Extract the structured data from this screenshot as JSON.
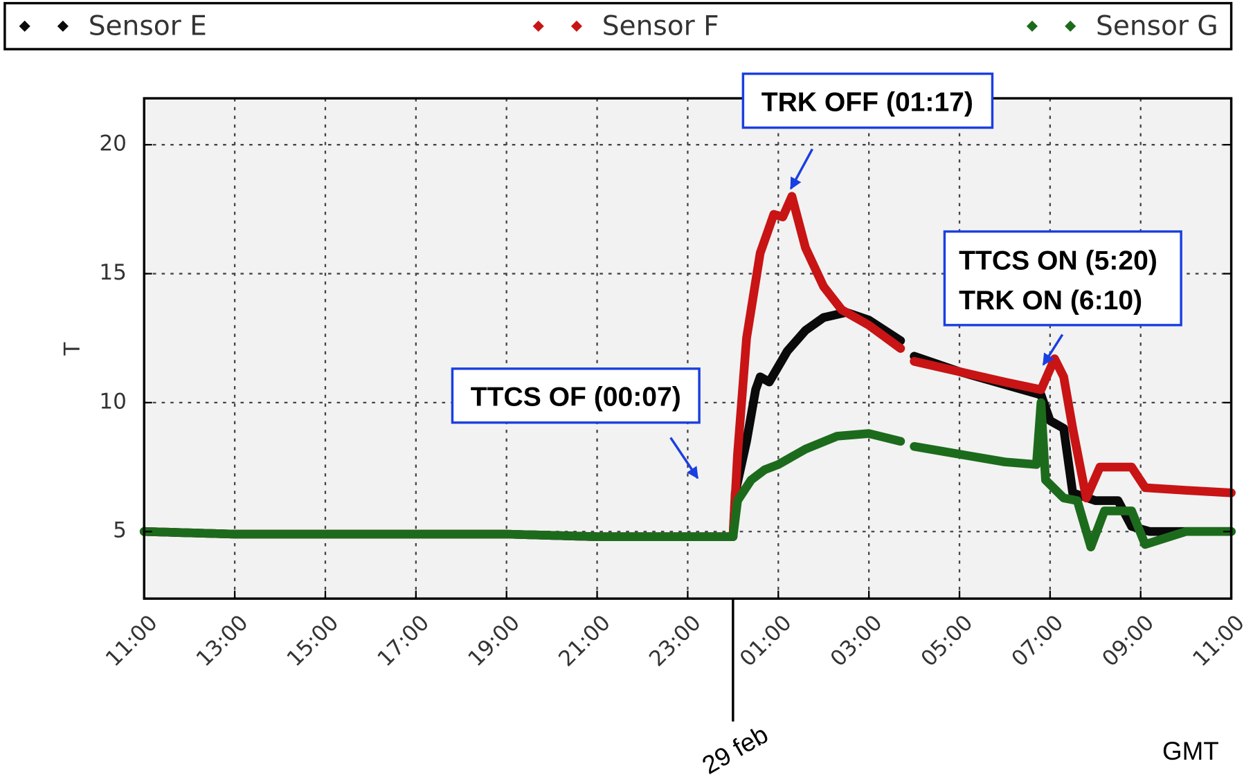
{
  "chart_data": {
    "type": "line",
    "ylabel": "T",
    "xlabel": "GMT",
    "xlim": [
      11,
      35
    ],
    "xticks": [
      {
        "value": 11,
        "label": "11:00"
      },
      {
        "value": 13,
        "label": "13:00"
      },
      {
        "value": 15,
        "label": "15:00"
      },
      {
        "value": 17,
        "label": "17:00"
      },
      {
        "value": 19,
        "label": "19:00"
      },
      {
        "value": 21,
        "label": "21:00"
      },
      {
        "value": 23,
        "label": "23:00"
      },
      {
        "value": 25,
        "label": "01:00"
      },
      {
        "value": 27,
        "label": "03:00"
      },
      {
        "value": 29,
        "label": "05:00"
      },
      {
        "value": 31,
        "label": "07:00"
      },
      {
        "value": 33,
        "label": "09:00"
      },
      {
        "value": 35,
        "label": "11:00"
      }
    ],
    "ylim": [
      2.4,
      21.8
    ],
    "yticks": [
      5,
      10,
      15,
      20
    ],
    "grid": true,
    "legend": "top",
    "date_marker": {
      "label": "29 feb",
      "x": 24
    },
    "annotations": [
      {
        "text": "TTCS OF (00:07)"
      },
      {
        "text": "TRK OFF (01:17)"
      },
      {
        "text": "TTCS ON (5:20)"
      },
      {
        "text": "TRK ON (6:10)"
      }
    ],
    "series": [
      {
        "name": "Sensor E",
        "color": "#0a0a0a",
        "x": [
          11,
          13,
          15,
          17,
          19,
          21,
          23,
          24,
          24.05,
          24.3,
          24.5,
          24.6,
          24.8,
          25.2,
          25.6,
          26,
          26.5,
          27,
          27.7,
          27.8,
          28,
          29,
          30,
          30.8,
          31,
          31.3,
          31.5,
          32,
          32.5,
          32.8,
          33.2,
          34,
          35
        ],
        "values": [
          5,
          4.9,
          4.9,
          4.9,
          4.9,
          4.8,
          4.8,
          4.8,
          6.5,
          8.5,
          10.5,
          11,
          10.8,
          12,
          12.8,
          13.3,
          13.5,
          13.2,
          12.4,
          null,
          11.8,
          11.2,
          10.7,
          10.3,
          9.3,
          9,
          6.5,
          6.2,
          6.2,
          5.2,
          5,
          5,
          5
        ]
      },
      {
        "name": "Sensor F",
        "color": "#c81414",
        "x": [
          11,
          13,
          15,
          17,
          19,
          21,
          23,
          24,
          24.1,
          24.3,
          24.6,
          24.9,
          25.1,
          25.3,
          25.6,
          26,
          26.4,
          27,
          27.7,
          27.8,
          28,
          29,
          30,
          30.8,
          31.1,
          31.3,
          31.5,
          31.8,
          32.1,
          32.8,
          33.1,
          34,
          35
        ],
        "values": [
          5,
          4.9,
          4.9,
          4.9,
          4.9,
          4.8,
          4.8,
          4.8,
          8,
          12.5,
          15.8,
          17.3,
          17.2,
          18,
          16,
          14.5,
          13.6,
          13,
          12.1,
          null,
          11.6,
          11.2,
          10.8,
          10.5,
          11.7,
          11,
          9,
          6.3,
          7.5,
          7.5,
          6.7,
          6.6,
          6.5
        ]
      },
      {
        "name": "Sensor G",
        "color": "#1c6b1c",
        "x": [
          11,
          13,
          15,
          17,
          19,
          21,
          23,
          24,
          24.1,
          24.4,
          24.7,
          25,
          25.6,
          26.3,
          27,
          27.7,
          27.8,
          28,
          29,
          30,
          30.7,
          30.8,
          30.9,
          31.3,
          31.6,
          31.9,
          32.2,
          32.8,
          33.1,
          34,
          35
        ],
        "values": [
          5,
          4.9,
          4.9,
          4.9,
          4.9,
          4.8,
          4.8,
          4.8,
          6.2,
          7,
          7.4,
          7.6,
          8.2,
          8.7,
          8.8,
          8.5,
          null,
          8.3,
          8,
          7.7,
          7.6,
          10,
          7,
          6.3,
          6.2,
          4.4,
          5.8,
          5.8,
          4.5,
          5,
          5
        ]
      }
    ]
  }
}
